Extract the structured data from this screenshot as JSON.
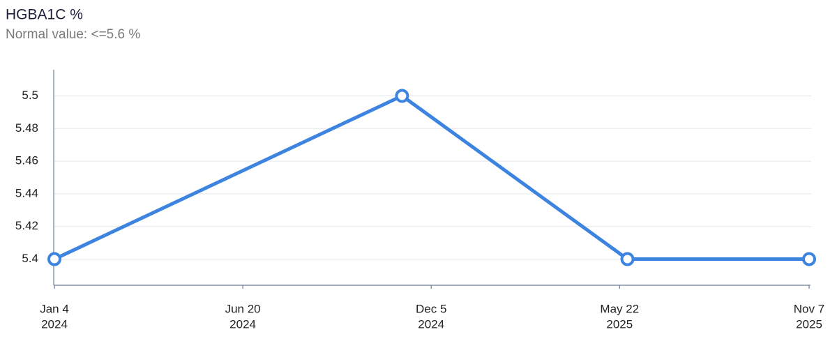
{
  "chart_data": {
    "type": "line",
    "title": "HGBA1C %",
    "subtitle": "Normal value: <=5.6 %",
    "x": [
      "2024-01-04",
      "2024-11-09",
      "2025-05-29",
      "2025-11-07"
    ],
    "series": [
      {
        "name": "HGBA1C %",
        "color": "#3d84e0",
        "values": [
          5.4,
          5.5,
          5.4,
          5.4
        ]
      }
    ],
    "xlim": [
      "2024-01-04",
      "2025-11-07"
    ],
    "xticks": [
      {
        "value": "2024-01-04",
        "label": [
          "Jan 4",
          "2024"
        ]
      },
      {
        "value": "2024-06-20",
        "label": [
          "Jun 20",
          "2024"
        ]
      },
      {
        "value": "2024-12-05",
        "label": [
          "Dec 5",
          "2024"
        ]
      },
      {
        "value": "2025-05-22",
        "label": [
          "May 22",
          "2025"
        ]
      },
      {
        "value": "2025-11-07",
        "label": [
          "Nov 7",
          "2025"
        ]
      }
    ],
    "ylim": [
      5.384,
      5.516
    ],
    "yticks": [
      5.4,
      5.42,
      5.44,
      5.46,
      5.48,
      5.5
    ],
    "grid": true
  }
}
